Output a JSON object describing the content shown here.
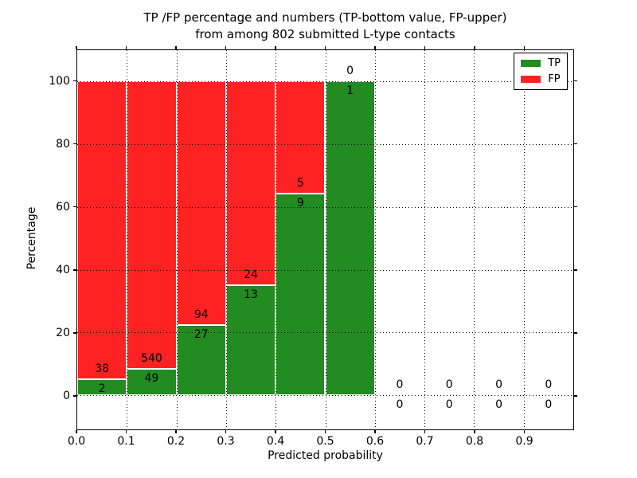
{
  "title": {
    "line1": "TP /FP percentage and numbers (TP-bottom value, FP-upper)",
    "line2": "from among 802 submitted L-type contacts"
  },
  "axes": {
    "xlabel": "Predicted probability",
    "ylabel": "Percentage",
    "xtick_values": [
      0.0,
      0.1,
      0.2,
      0.3,
      0.4,
      0.5,
      0.6,
      0.7,
      0.8,
      0.9
    ],
    "xtick_labels": [
      "0.0",
      "0.1",
      "0.2",
      "0.3",
      "0.4",
      "0.5",
      "0.6",
      "0.7",
      "0.8",
      "0.9"
    ],
    "ytick_values": [
      0,
      20,
      40,
      60,
      80,
      100
    ],
    "ytick_labels": [
      "0",
      "20",
      "40",
      "60",
      "80",
      "100"
    ],
    "xlim": [
      0.0,
      1.0
    ],
    "ylim": [
      -10.9,
      110.0
    ],
    "grid": true
  },
  "legend": {
    "position": "upper right",
    "items": [
      {
        "label": "TP",
        "color": "#228B22"
      },
      {
        "label": "FP",
        "color": "#FF2222"
      }
    ]
  },
  "chart_data": {
    "type": "bar",
    "stacked": true,
    "bar_width": 0.1,
    "bin_edges": [
      0.0,
      0.1,
      0.2,
      0.3,
      0.4,
      0.5,
      0.6,
      0.7,
      0.8,
      0.9,
      1.0
    ],
    "bin_centers": [
      0.05,
      0.15,
      0.25,
      0.35,
      0.45,
      0.55,
      0.65,
      0.75,
      0.85,
      0.95
    ],
    "series": [
      {
        "name": "TP",
        "color": "#228B22",
        "counts": [
          2,
          49,
          27,
          13,
          9,
          1,
          0,
          0,
          0,
          0
        ]
      },
      {
        "name": "FP",
        "color": "#FF2222",
        "counts": [
          38,
          540,
          94,
          24,
          5,
          0,
          0,
          0,
          0,
          0
        ]
      }
    ],
    "tp_percent": [
      5.0,
      8.32,
      22.31,
      35.14,
      64.29,
      100.0,
      null,
      null,
      null,
      null
    ],
    "title": "TP /FP percentage and numbers (TP-bottom value, FP-upper) from among 802 submitted L-type contacts",
    "xlabel": "Predicted probability",
    "ylabel": "Percentage",
    "legend_entries": [
      "TP",
      "FP"
    ],
    "grid": "dotted"
  }
}
